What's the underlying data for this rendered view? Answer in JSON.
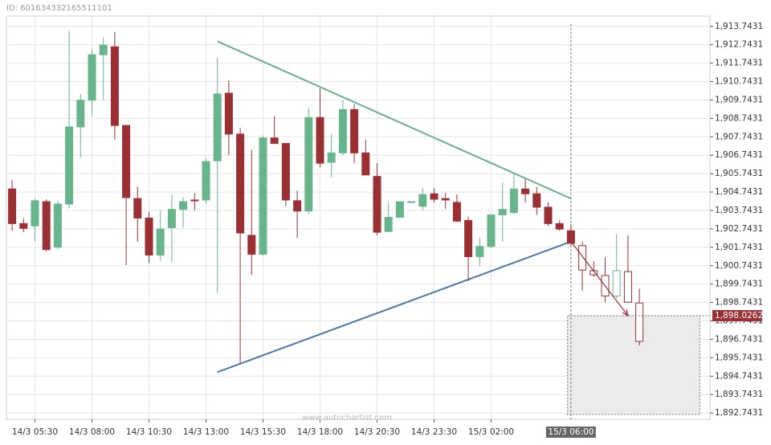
{
  "chart_data": {
    "type": "candlestick",
    "id_label": "ID: 601634332165511101",
    "watermark": "www.autochartist.com",
    "categories": [
      null,
      null,
      "14/3 05:30",
      null,
      null,
      null,
      null,
      "14/3 08:00",
      null,
      null,
      null,
      null,
      "14/3 10:30",
      null,
      null,
      null,
      null,
      "14/3 13:00",
      null,
      null,
      null,
      null,
      "14/3 15:30",
      null,
      null,
      null,
      null,
      "14/3 18:00",
      null,
      null,
      null,
      null,
      "14/3 20:30",
      null,
      null,
      null,
      null,
      "14/3 23:30",
      null,
      null,
      null,
      null,
      "15/3 02:00",
      null,
      null,
      null,
      null,
      null,
      null,
      "15/3 06:00",
      null,
      null,
      null,
      null,
      null,
      null
    ],
    "highlight_category": 49,
    "open": [
      1904.91,
      1903.03,
      1902.9,
      1904.22,
      1901.75,
      1904.09,
      1908.28,
      1909.73,
      1912.2,
      1912.63,
      1908.36,
      1904.39,
      1903.33,
      1901.32,
      1902.81,
      1903.8,
      1904.31,
      1904.31,
      1906.44,
      1910.11,
      1907.89,
      1902.39,
      1901.36,
      1907.68,
      1907.38,
      1904.27,
      1903.71,
      1908.79,
      1906.36,
      1906.87,
      1909.22,
      1906.87,
      1905.59,
      1902.6,
      1903.37,
      1904.18,
      1903.97,
      1904.65,
      1904.39,
      1904.18,
      1903.2,
      1901.23,
      1901.79,
      1903.5,
      1903.63,
      1904.91,
      1904.65,
      1903.92,
      1903.03,
      1902.64,
      1901.83,
      1900.47,
      1900.21,
      1899.1,
      1900.42,
      1898.72
    ],
    "high": [
      1905.38,
      1903.33,
      1904.39,
      1904.35,
      1904.27,
      1913.48,
      1910.07,
      1912.5,
      1913.14,
      1913.44,
      1908.36,
      1905.03,
      1903.67,
      1903.75,
      1904.61,
      1904.48,
      1904.69,
      1906.57,
      1912.03,
      1910.8,
      1908.23,
      1907.04,
      1907.81,
      1908.87,
      1907.38,
      1904.82,
      1909.3,
      1910.37,
      1907.89,
      1909.73,
      1909.51,
      1907.59,
      1906.31,
      1904.18,
      1904.22,
      1904.22,
      1904.95,
      1904.95,
      1904.69,
      1904.61,
      1903.41,
      1902.26,
      1903.5,
      1905.25,
      1905.8,
      1905.46,
      1905.03,
      1904.18,
      1903.2,
      1902.99,
      1902.05,
      1900.98,
      1901.19,
      1902.47,
      1902.39,
      1899.49
    ],
    "low": [
      1902.64,
      1902.56,
      1902.05,
      1901.53,
      1901.62,
      1903.84,
      1906.61,
      1908.87,
      1909.73,
      1907.59,
      1900.77,
      1902.05,
      1900.89,
      1901.02,
      1900.94,
      1902.81,
      1903.75,
      1904.09,
      1899.27,
      1906.74,
      1895.43,
      1900.25,
      1901.28,
      1907.38,
      1903.97,
      1902.26,
      1903.54,
      1906.1,
      1905.55,
      1906.74,
      1906.31,
      1905.67,
      1902.39,
      1902.56,
      1903.33,
      1904.18,
      1903.75,
      1904.18,
      1903.84,
      1903.11,
      1899.91,
      1900.72,
      1901.7,
      1902.05,
      1903.54,
      1904.18,
      1903.5,
      1902.9,
      1902.64,
      1901.83,
      1899.4,
      1900.13,
      1898.76,
      1898.97,
      1898.72,
      1896.41
    ],
    "close": [
      1903.03,
      1902.77,
      1904.27,
      1901.62,
      1904.09,
      1908.28,
      1909.73,
      1912.2,
      1912.72,
      1908.36,
      1904.44,
      1903.33,
      1901.32,
      1902.73,
      1903.8,
      1904.22,
      1904.27,
      1906.4,
      1910.07,
      1907.89,
      1902.52,
      1901.36,
      1907.68,
      1907.38,
      1904.31,
      1903.71,
      1908.79,
      1906.31,
      1906.87,
      1909.22,
      1906.87,
      1905.67,
      1902.56,
      1903.37,
      1904.22,
      1904.22,
      1904.61,
      1904.35,
      1904.31,
      1903.16,
      1901.23,
      1901.79,
      1903.5,
      1903.8,
      1904.91,
      1904.65,
      1903.92,
      1903.03,
      1902.73,
      1901.96,
      1900.51,
      1900.25,
      1899.1,
      1900.47,
      1898.76,
      1896.63
    ],
    "forecast_from": 50,
    "up_color": "#68b58c",
    "down_color": "#9b3034",
    "ylim": [
      1892.4,
      1914.3
    ],
    "yticks": [
      {
        "value": 1892.7431,
        "label": "1,892.7431"
      },
      {
        "value": 1893.7431,
        "label": "1,893.7431"
      },
      {
        "value": 1894.7431,
        "label": "1,894.7431"
      },
      {
        "value": 1895.7431,
        "label": "1,895.7431"
      },
      {
        "value": 1896.7431,
        "label": "1,896.7431"
      },
      {
        "value": 1897.7431,
        "label": "1,897.7431"
      },
      {
        "value": 1898.7431,
        "label": "1,898.7431"
      },
      {
        "value": 1899.7431,
        "label": "1,899.7431"
      },
      {
        "value": 1900.7431,
        "label": "1,900.7431"
      },
      {
        "value": 1901.7431,
        "label": "1,901.7431"
      },
      {
        "value": 1902.7431,
        "label": "1,902.7431"
      },
      {
        "value": 1903.7431,
        "label": "1,903.7431"
      },
      {
        "value": 1904.7431,
        "label": "1,904.7431"
      },
      {
        "value": 1905.7431,
        "label": "1,905.7431"
      },
      {
        "value": 1906.7431,
        "label": "1,906.7431"
      },
      {
        "value": 1907.7431,
        "label": "1,907.7431"
      },
      {
        "value": 1908.7431,
        "label": "1,908.7431"
      },
      {
        "value": 1909.7431,
        "label": "1,909.7431"
      },
      {
        "value": 1910.7431,
        "label": "1,910.7431"
      },
      {
        "value": 1911.7431,
        "label": "1,911.7431"
      },
      {
        "value": 1912.7431,
        "label": "1,912.7431"
      },
      {
        "value": 1913.7431,
        "label": "1,913.7431"
      }
    ],
    "grid": true,
    "trendlines": [
      {
        "color": "#6ab08c",
        "x": [
          18,
          49
        ],
        "y": [
          1912.93,
          1904.39
        ]
      },
      {
        "color": "#4a78a8",
        "x": [
          18,
          49
        ],
        "y": [
          1894.96,
          1902.05
        ]
      }
    ],
    "forecast_arrow": {
      "color": "#9b3034",
      "x": [
        49,
        54
      ],
      "y": [
        1902.05,
        1898.03
      ]
    },
    "forecast_zone": {
      "x": [
        49.2,
        60.8
      ],
      "y": [
        1892.66,
        1898.0262
      ]
    },
    "target": {
      "value": 1898.0262,
      "label": "1,898.0262"
    }
  }
}
